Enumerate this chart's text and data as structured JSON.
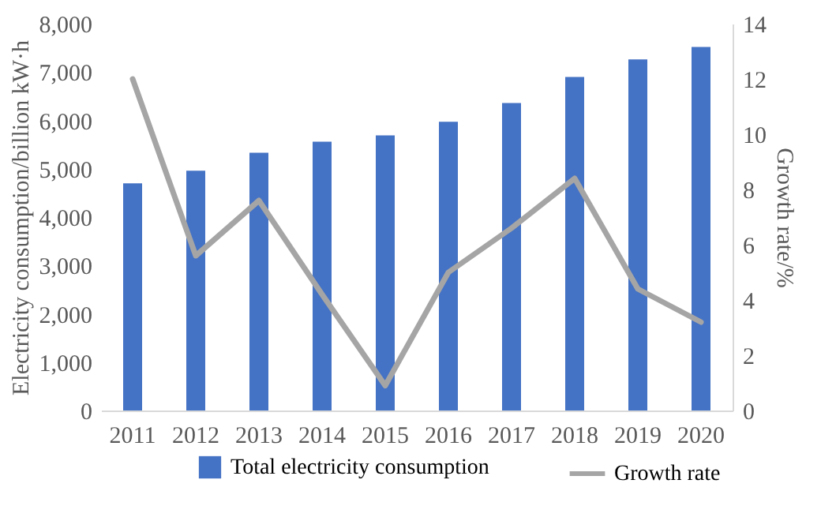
{
  "chart_data": {
    "type": "bar",
    "categories": [
      "2011",
      "2012",
      "2013",
      "2014",
      "2015",
      "2016",
      "2017",
      "2018",
      "2019",
      "2020"
    ],
    "ylabel": "Electricity consumption/billion kW·h",
    "y2label": "Growth rate/%",
    "ylim": [
      0,
      8000
    ],
    "yticks": [
      0,
      {
        "value": 1000,
        "label": "1,000"
      },
      {
        "value": 2000,
        "label": "2,000"
      },
      {
        "value": 3000,
        "label": "3,000"
      },
      {
        "value": 4000,
        "label": "4,000"
      },
      {
        "value": 5000,
        "label": "5,000"
      },
      {
        "value": 6000,
        "label": "6,000"
      },
      {
        "value": 7000,
        "label": "7,000"
      },
      {
        "value": 8000,
        "label": "8,000"
      }
    ],
    "y2lim": [
      0,
      14
    ],
    "y2ticks": [
      0,
      2,
      4,
      6,
      8,
      10,
      12,
      14
    ],
    "series": [
      {
        "name": "Total electricity consumption",
        "color": "#4472c4",
        "values": [
          4700,
          4960,
          5330,
          5560,
          5690,
          5970,
          6360,
          6900,
          7260,
          7520
        ]
      },
      {
        "name": "Growth rate",
        "type": "line",
        "axis": "y2",
        "color": "#a5a5a5",
        "values": [
          12.0,
          5.6,
          7.6,
          4.2,
          0.9,
          5.0,
          6.6,
          8.4,
          4.4,
          3.2
        ]
      }
    ],
    "grid": false,
    "legend": "bottom"
  }
}
